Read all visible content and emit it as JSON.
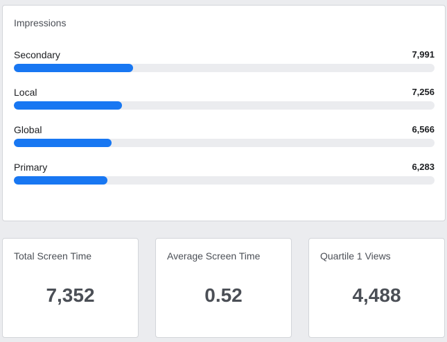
{
  "impressions": {
    "title": "Impressions",
    "accent_color": "#1877f2",
    "items": [
      {
        "label": "Secondary",
        "value": "7,991",
        "fill_fraction": 0.284
      },
      {
        "label": "Local",
        "value": "7,256",
        "fill_fraction": 0.257
      },
      {
        "label": "Global",
        "value": "6,566",
        "fill_fraction": 0.233
      },
      {
        "label": "Primary",
        "value": "6,283",
        "fill_fraction": 0.223
      }
    ]
  },
  "stats": [
    {
      "title": "Total Screen Time",
      "value": "7,352"
    },
    {
      "title": "Average Screen Time",
      "value": "0.52"
    },
    {
      "title": "Quartile 1 Views",
      "value": "4,488"
    }
  ]
}
